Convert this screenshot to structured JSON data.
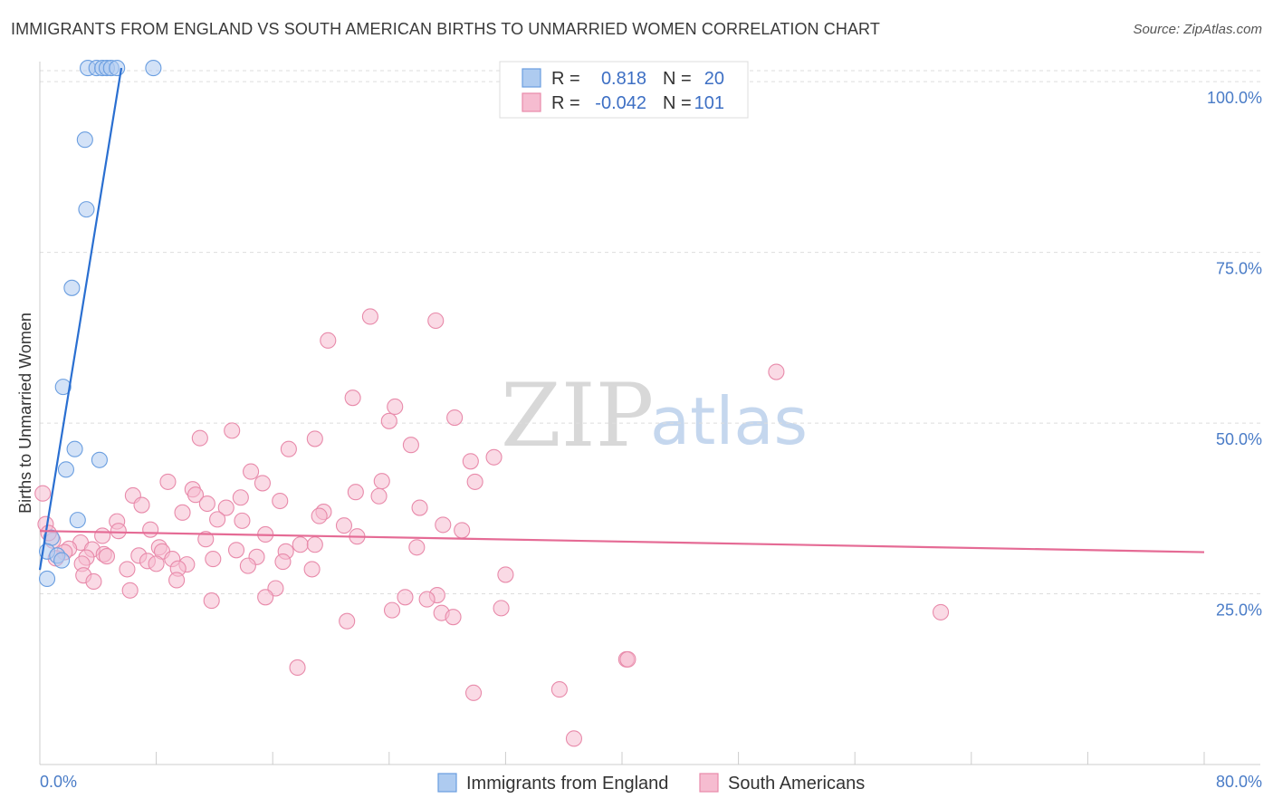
{
  "header": {
    "title": "IMMIGRANTS FROM ENGLAND VS SOUTH AMERICAN BIRTHS TO UNMARRIED WOMEN CORRELATION CHART",
    "source": "Source: ZipAtlas.com"
  },
  "watermark": {
    "zip": "ZIP",
    "atlas": "atlas"
  },
  "colors": {
    "blue_fill": "#aecbf0",
    "blue_stroke": "#6a9ee0",
    "blue_line": "#2a6fd1",
    "pink_fill": "#f6bcd0",
    "pink_stroke": "#e88aaa",
    "pink_line": "#e56b95",
    "grid": "#dddddd",
    "tick_text": "#4a7cc7"
  },
  "legend": {
    "rows": [
      {
        "r_label": "R =",
        "r_value": "0.818",
        "n_label": "N =",
        "n_value": "20",
        "color": "blue"
      },
      {
        "r_label": "R =",
        "r_value": "-0.042",
        "n_label": "N =",
        "n_value": "101",
        "color": "pink"
      }
    ]
  },
  "chart_data": {
    "type": "scatter",
    "title": "IMMIGRANTS FROM ENGLAND VS SOUTH AMERICAN BIRTHS TO UNMARRIED WOMEN CORRELATION CHART",
    "xlabel": "",
    "ylabel": "Births to Unmarried Women",
    "xlim": [
      0,
      80
    ],
    "ylim": [
      0,
      104
    ],
    "x_tick_labels": [
      "0.0%",
      "80.0%"
    ],
    "y_ticks": [
      25,
      50,
      75,
      100
    ],
    "y_tick_labels": [
      "25.0%",
      "50.0%",
      "75.0%",
      "100.0%"
    ],
    "grid": true,
    "series": [
      {
        "name": "Immigrants from England",
        "color": "blue",
        "R": 0.818,
        "N": 20,
        "trend": {
          "x": [
            0.0,
            5.6
          ],
          "y": [
            28.5,
            102.0
          ]
        },
        "points": [
          {
            "x": 3.3,
            "y": 102
          },
          {
            "x": 3.9,
            "y": 102
          },
          {
            "x": 4.3,
            "y": 102
          },
          {
            "x": 4.6,
            "y": 102
          },
          {
            "x": 4.9,
            "y": 102
          },
          {
            "x": 5.3,
            "y": 102
          },
          {
            "x": 7.8,
            "y": 102
          },
          {
            "x": 3.1,
            "y": 91.5
          },
          {
            "x": 3.2,
            "y": 81.3
          },
          {
            "x": 2.2,
            "y": 69.8
          },
          {
            "x": 1.6,
            "y": 55.3
          },
          {
            "x": 2.4,
            "y": 46.2
          },
          {
            "x": 4.1,
            "y": 44.6
          },
          {
            "x": 1.8,
            "y": 43.2
          },
          {
            "x": 2.6,
            "y": 35.8
          },
          {
            "x": 0.8,
            "y": 33.2
          },
          {
            "x": 0.5,
            "y": 31.2
          },
          {
            "x": 1.2,
            "y": 30.6
          },
          {
            "x": 1.5,
            "y": 29.9
          },
          {
            "x": 0.5,
            "y": 27.2
          }
        ]
      },
      {
        "name": "South Americans",
        "color": "pink",
        "R": -0.042,
        "N": 101,
        "trend": {
          "x": [
            0.0,
            80.0
          ],
          "y": [
            34.2,
            31.1
          ]
        },
        "points": [
          {
            "x": 22.7,
            "y": 65.6
          },
          {
            "x": 27.2,
            "y": 65.0
          },
          {
            "x": 19.8,
            "y": 62.1
          },
          {
            "x": 50.6,
            "y": 57.5
          },
          {
            "x": 21.5,
            "y": 53.7
          },
          {
            "x": 24.4,
            "y": 52.4
          },
          {
            "x": 24.0,
            "y": 50.3
          },
          {
            "x": 28.5,
            "y": 50.8
          },
          {
            "x": 13.2,
            "y": 48.9
          },
          {
            "x": 11.0,
            "y": 47.8
          },
          {
            "x": 18.9,
            "y": 47.7
          },
          {
            "x": 25.5,
            "y": 46.8
          },
          {
            "x": 17.1,
            "y": 46.2
          },
          {
            "x": 31.2,
            "y": 45.0
          },
          {
            "x": 29.6,
            "y": 44.4
          },
          {
            "x": 14.5,
            "y": 42.9
          },
          {
            "x": 8.8,
            "y": 41.4
          },
          {
            "x": 15.3,
            "y": 41.2
          },
          {
            "x": 23.5,
            "y": 41.5
          },
          {
            "x": 29.9,
            "y": 41.4
          },
          {
            "x": 10.5,
            "y": 40.3
          },
          {
            "x": 21.7,
            "y": 39.9
          },
          {
            "x": 23.3,
            "y": 39.3
          },
          {
            "x": 6.4,
            "y": 39.4
          },
          {
            "x": 10.7,
            "y": 39.5
          },
          {
            "x": 13.8,
            "y": 39.1
          },
          {
            "x": 0.2,
            "y": 39.7
          },
          {
            "x": 16.5,
            "y": 38.6
          },
          {
            "x": 11.5,
            "y": 38.2
          },
          {
            "x": 7.0,
            "y": 38.0
          },
          {
            "x": 12.8,
            "y": 37.6
          },
          {
            "x": 26.1,
            "y": 37.6
          },
          {
            "x": 19.5,
            "y": 37.0
          },
          {
            "x": 9.8,
            "y": 36.9
          },
          {
            "x": 19.2,
            "y": 36.4
          },
          {
            "x": 12.2,
            "y": 35.9
          },
          {
            "x": 13.9,
            "y": 35.7
          },
          {
            "x": 5.3,
            "y": 35.6
          },
          {
            "x": 0.4,
            "y": 35.2
          },
          {
            "x": 20.9,
            "y": 35.0
          },
          {
            "x": 27.7,
            "y": 35.1
          },
          {
            "x": 5.4,
            "y": 34.2
          },
          {
            "x": 7.6,
            "y": 34.4
          },
          {
            "x": 29.0,
            "y": 34.3
          },
          {
            "x": 15.5,
            "y": 33.7
          },
          {
            "x": 21.8,
            "y": 33.4
          },
          {
            "x": 4.3,
            "y": 33.5
          },
          {
            "x": 0.9,
            "y": 32.8
          },
          {
            "x": 11.4,
            "y": 33.0
          },
          {
            "x": 2.8,
            "y": 32.5
          },
          {
            "x": 17.9,
            "y": 32.2
          },
          {
            "x": 18.9,
            "y": 32.2
          },
          {
            "x": 25.9,
            "y": 31.8
          },
          {
            "x": 8.2,
            "y": 31.8
          },
          {
            "x": 2.0,
            "y": 31.6
          },
          {
            "x": 3.6,
            "y": 31.5
          },
          {
            "x": 13.5,
            "y": 31.4
          },
          {
            "x": 16.9,
            "y": 31.2
          },
          {
            "x": 8.4,
            "y": 31.2
          },
          {
            "x": 1.7,
            "y": 31.1
          },
          {
            "x": 4.4,
            "y": 30.8
          },
          {
            "x": 6.8,
            "y": 30.6
          },
          {
            "x": 4.6,
            "y": 30.5
          },
          {
            "x": 14.9,
            "y": 30.4
          },
          {
            "x": 3.2,
            "y": 30.3
          },
          {
            "x": 1.1,
            "y": 30.2
          },
          {
            "x": 9.1,
            "y": 30.1
          },
          {
            "x": 11.9,
            "y": 30.1
          },
          {
            "x": 7.4,
            "y": 29.8
          },
          {
            "x": 16.7,
            "y": 29.7
          },
          {
            "x": 8.0,
            "y": 29.4
          },
          {
            "x": 2.9,
            "y": 29.4
          },
          {
            "x": 10.1,
            "y": 29.3
          },
          {
            "x": 14.3,
            "y": 29.1
          },
          {
            "x": 9.5,
            "y": 28.7
          },
          {
            "x": 6.0,
            "y": 28.6
          },
          {
            "x": 18.7,
            "y": 28.6
          },
          {
            "x": 3.0,
            "y": 27.7
          },
          {
            "x": 32.0,
            "y": 27.8
          },
          {
            "x": 9.4,
            "y": 27.0
          },
          {
            "x": 3.7,
            "y": 26.8
          },
          {
            "x": 6.2,
            "y": 25.5
          },
          {
            "x": 16.2,
            "y": 25.8
          },
          {
            "x": 15.5,
            "y": 24.5
          },
          {
            "x": 11.8,
            "y": 24.0
          },
          {
            "x": 27.3,
            "y": 24.8
          },
          {
            "x": 25.1,
            "y": 24.5
          },
          {
            "x": 26.6,
            "y": 24.2
          },
          {
            "x": 31.7,
            "y": 22.9
          },
          {
            "x": 24.2,
            "y": 22.6
          },
          {
            "x": 27.6,
            "y": 22.2
          },
          {
            "x": 28.4,
            "y": 21.6
          },
          {
            "x": 21.1,
            "y": 21.0
          },
          {
            "x": 61.9,
            "y": 22.3
          },
          {
            "x": 40.3,
            "y": 15.4
          },
          {
            "x": 40.4,
            "y": 15.4
          },
          {
            "x": 17.7,
            "y": 14.2
          },
          {
            "x": 29.8,
            "y": 10.5
          },
          {
            "x": 35.7,
            "y": 11.0
          },
          {
            "x": 36.7,
            "y": 3.8
          },
          {
            "x": 0.6,
            "y": 33.9
          }
        ]
      }
    ]
  },
  "bottom_legend": {
    "items": [
      {
        "label": "Immigrants from England",
        "color": "blue"
      },
      {
        "label": "South Americans",
        "color": "pink"
      }
    ]
  }
}
